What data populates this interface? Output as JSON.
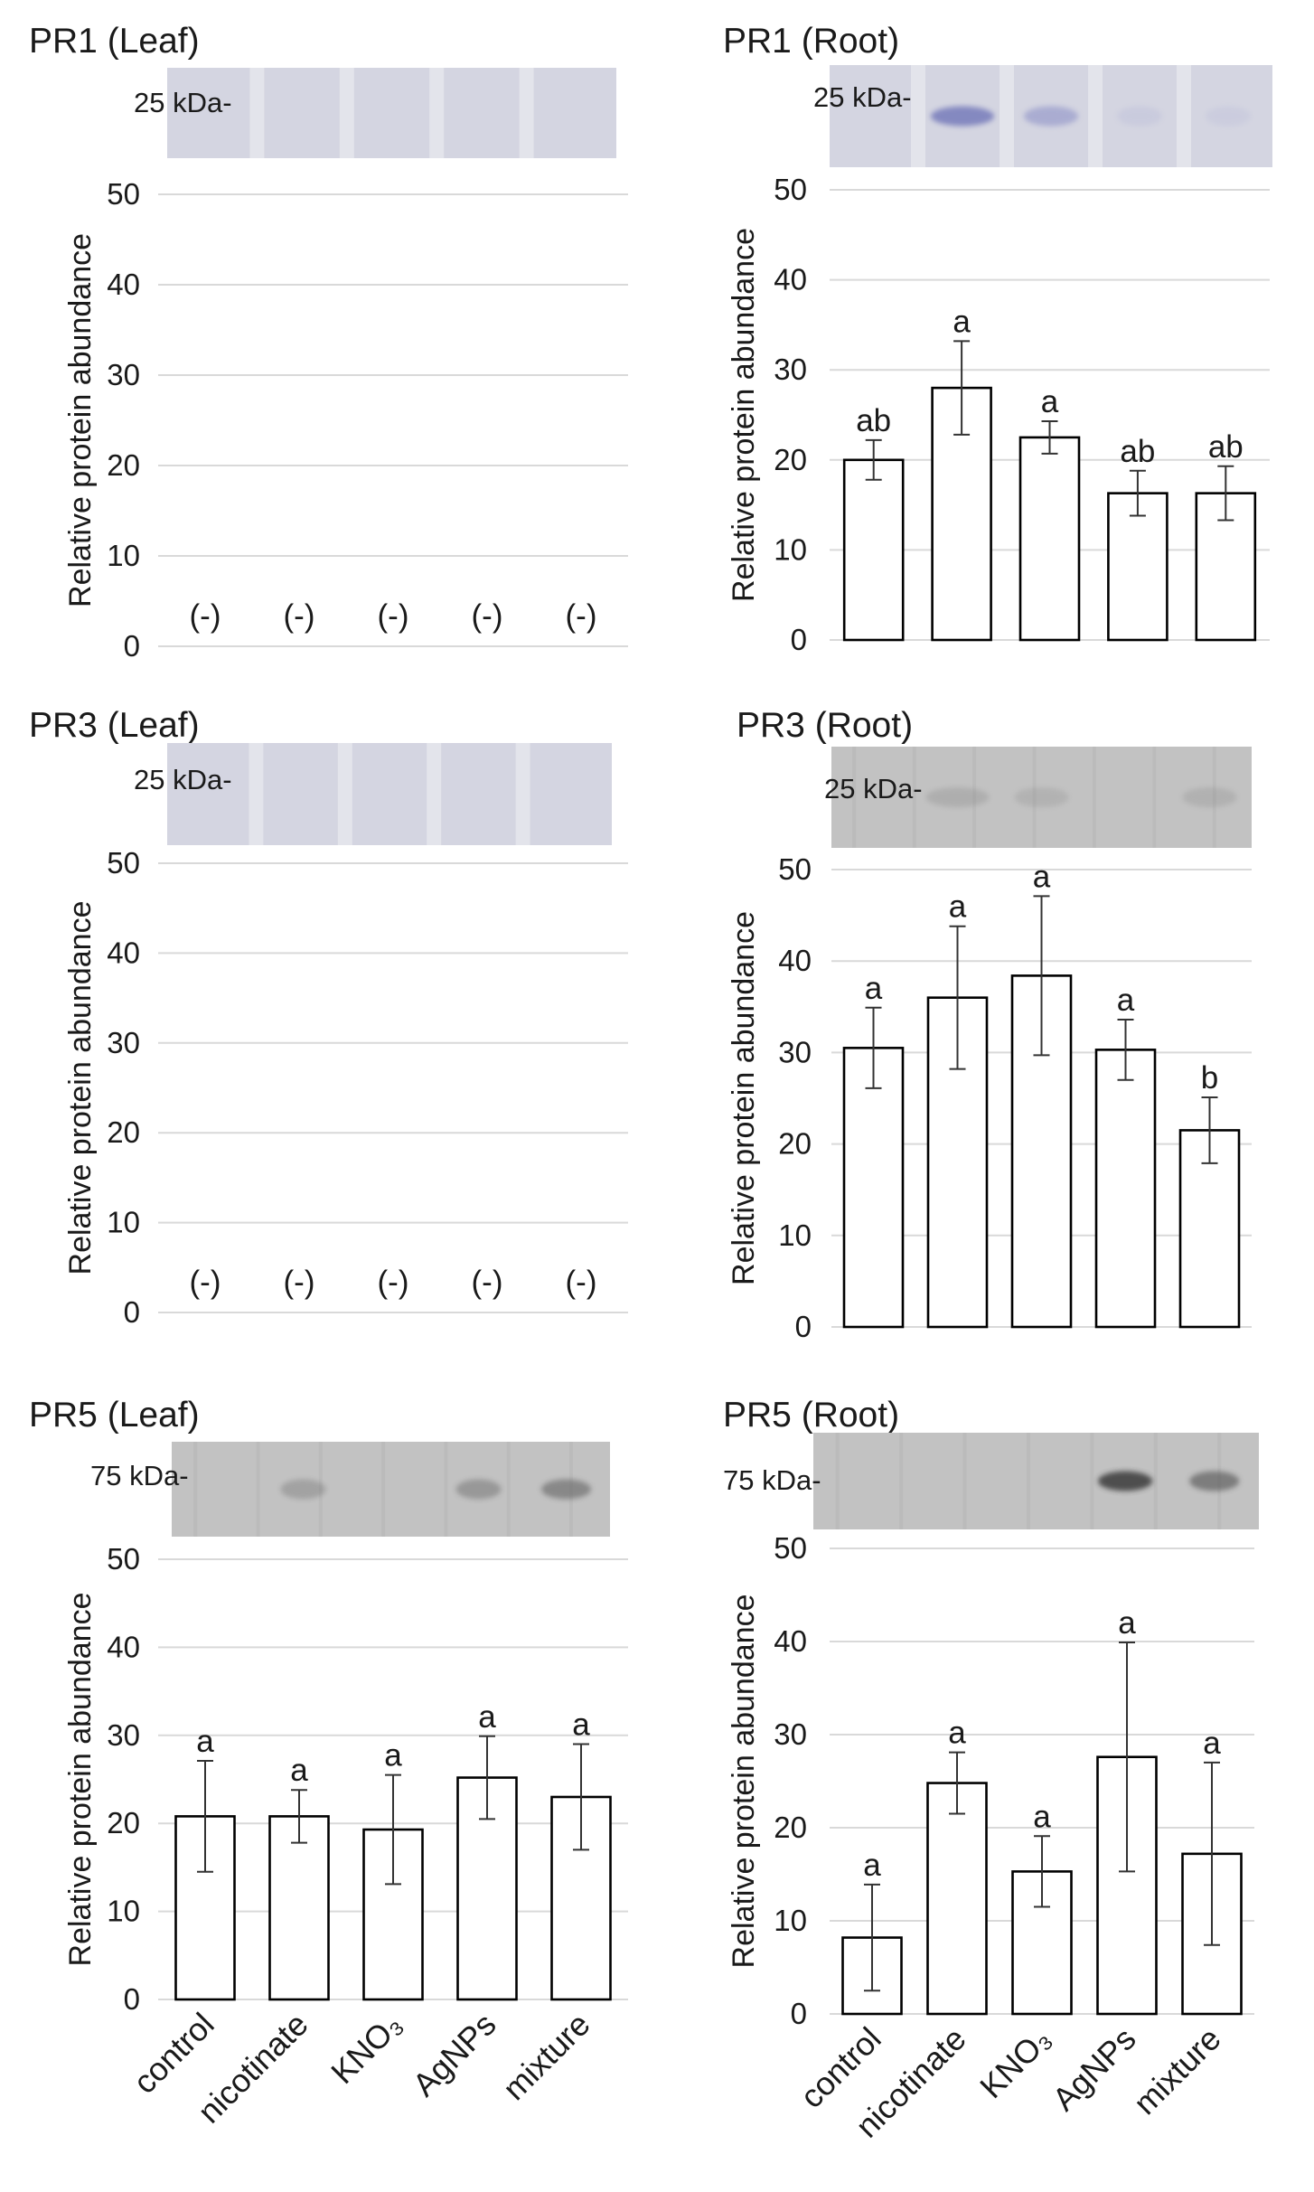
{
  "categories": [
    "control",
    "nicotinate",
    "KNO₃",
    "AgNPs",
    "mixture"
  ],
  "colors": {
    "bar_fill": "#ffffff",
    "bar_stroke": "#000000",
    "grid": "#d9d9d9",
    "blot_pale": "#d4d5e1",
    "blot_gray": "#c2c2c2"
  },
  "chart_data": [
    {
      "type": "bar",
      "title": "PR1 (Leaf)",
      "blot_label": "25 kDa-",
      "ylabel": "Relative protein abundance",
      "ylim": [
        0,
        50
      ],
      "yticks": [
        0,
        10,
        20,
        30,
        40,
        50
      ],
      "categories": [
        "control",
        "nicotinate",
        "KNO₃",
        "AgNPs",
        "mixture"
      ],
      "values": [
        null,
        null,
        null,
        null,
        null
      ],
      "errors": [
        null,
        null,
        null,
        null,
        null
      ],
      "labels": [
        "(-)",
        "(-)",
        "(-)",
        "(-)",
        "(-)"
      ]
    },
    {
      "type": "bar",
      "title": "PR1 (Root)",
      "blot_label": "25 kDa-",
      "ylabel": "Relative protein abundance",
      "ylim": [
        0,
        50
      ],
      "yticks": [
        0,
        10,
        20,
        30,
        40,
        50
      ],
      "categories": [
        "control",
        "nicotinate",
        "KNO₃",
        "AgNPs",
        "mixture"
      ],
      "values": [
        20.0,
        28.0,
        22.5,
        16.3,
        16.3
      ],
      "errors": [
        2.2,
        5.2,
        1.8,
        2.5,
        3.0
      ],
      "labels": [
        "ab",
        "a",
        "a",
        "ab",
        "ab"
      ]
    },
    {
      "type": "bar",
      "title": "PR3 (Leaf)",
      "blot_label": "25 kDa-",
      "ylabel": "Relative protein abundance",
      "ylim": [
        0,
        50
      ],
      "yticks": [
        0,
        10,
        20,
        30,
        40,
        50
      ],
      "categories": [
        "control",
        "nicotinate",
        "KNO₃",
        "AgNPs",
        "mixture"
      ],
      "values": [
        null,
        null,
        null,
        null,
        null
      ],
      "errors": [
        null,
        null,
        null,
        null,
        null
      ],
      "labels": [
        "(-)",
        "(-)",
        "(-)",
        "(-)",
        "(-)"
      ]
    },
    {
      "type": "bar",
      "title": "PR3 (Root)",
      "blot_label": "25 kDa-",
      "ylabel": "Relative protein abundance",
      "ylim": [
        0,
        50
      ],
      "yticks": [
        0,
        10,
        20,
        30,
        40,
        50
      ],
      "categories": [
        "control",
        "nicotinate",
        "KNO₃",
        "AgNPs",
        "mixture"
      ],
      "values": [
        30.5,
        36.0,
        38.4,
        30.3,
        21.5
      ],
      "errors": [
        4.4,
        7.8,
        8.7,
        3.3,
        3.6
      ],
      "labels": [
        "a",
        "a",
        "a",
        "a",
        "b"
      ]
    },
    {
      "type": "bar",
      "title": "PR5 (Leaf)",
      "blot_label": "75 kDa-",
      "ylabel": "Relative protein abundance",
      "ylim": [
        0,
        50
      ],
      "yticks": [
        0,
        10,
        20,
        30,
        40,
        50
      ],
      "categories": [
        "control",
        "nicotinate",
        "KNO₃",
        "AgNPs",
        "mixture"
      ],
      "values": [
        20.8,
        20.8,
        19.3,
        25.2,
        23.0
      ],
      "errors": [
        6.3,
        3.0,
        6.2,
        4.7,
        6.0
      ],
      "labels": [
        "a",
        "a",
        "a",
        "a",
        "a"
      ]
    },
    {
      "type": "bar",
      "title": "PR5 (Root)",
      "blot_label": "75 kDa-",
      "ylabel": "Relative protein abundance",
      "ylim": [
        0,
        50
      ],
      "yticks": [
        0,
        10,
        20,
        30,
        40,
        50
      ],
      "categories": [
        "control",
        "nicotinate",
        "KNO₃",
        "AgNPs",
        "mixture"
      ],
      "values": [
        8.2,
        24.8,
        15.3,
        27.6,
        17.2
      ],
      "errors": [
        5.7,
        3.3,
        3.8,
        12.3,
        9.8
      ],
      "labels": [
        "a",
        "a",
        "a",
        "a",
        "a"
      ]
    }
  ]
}
